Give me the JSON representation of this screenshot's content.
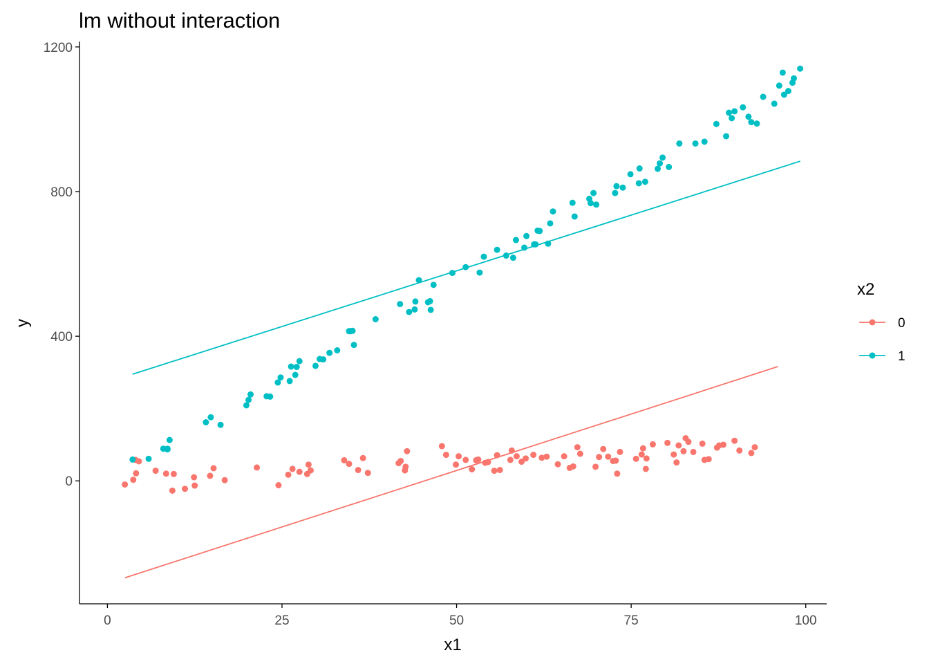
{
  "chart_data": {
    "type": "scatter",
    "title": "lm without interaction",
    "xlabel": "x1",
    "ylabel": "y",
    "xlim": [
      -4,
      103
    ],
    "ylim": [
      -340,
      1215
    ],
    "x_ticks": [
      0,
      25,
      50,
      75,
      100
    ],
    "x_tick_labels": [
      "0",
      "25",
      "50",
      "75",
      "100"
    ],
    "y_ticks": [
      0,
      400,
      800,
      1200
    ],
    "y_tick_labels": [
      "0",
      "400",
      "800",
      "1200"
    ],
    "grid": false,
    "legend": {
      "title": "x2",
      "position": "right",
      "entries": [
        "0",
        "1"
      ]
    },
    "colors": {
      "0": "#F8766D",
      "1": "#00BFC4",
      "axis": "#000000",
      "tick_text": "#4d4d4d"
    },
    "series": [
      {
        "name": "0",
        "color": "#F8766D",
        "points": [
          [
            2.5,
            -10
          ],
          [
            3.7,
            3
          ],
          [
            4.1,
            21
          ],
          [
            4.5,
            54
          ],
          [
            6.9,
            28
          ],
          [
            8.4,
            20
          ],
          [
            9.3,
            -27
          ],
          [
            9.5,
            19
          ],
          [
            11.1,
            -22
          ],
          [
            12.4,
            10
          ],
          [
            12.5,
            -13
          ],
          [
            14.7,
            14
          ],
          [
            15.2,
            35
          ],
          [
            16.8,
            2
          ],
          [
            21.4,
            37
          ],
          [
            24.5,
            -12
          ],
          [
            25.9,
            17
          ],
          [
            26.5,
            33
          ],
          [
            27.5,
            25
          ],
          [
            28.6,
            19
          ],
          [
            28.8,
            45
          ],
          [
            29.1,
            29
          ],
          [
            33.9,
            57
          ],
          [
            34.6,
            47
          ],
          [
            35.9,
            30
          ],
          [
            36.6,
            63
          ],
          [
            37.3,
            22
          ],
          [
            41.7,
            49
          ],
          [
            42.0,
            55
          ],
          [
            42.6,
            29
          ],
          [
            42.7,
            39
          ],
          [
            42.9,
            82
          ],
          [
            47.9,
            96
          ],
          [
            48.5,
            72
          ],
          [
            49.9,
            45
          ],
          [
            50.3,
            68
          ],
          [
            51.3,
            58
          ],
          [
            52.2,
            32
          ],
          [
            52.8,
            57
          ],
          [
            53.1,
            59
          ],
          [
            54.1,
            50
          ],
          [
            54.5,
            52
          ],
          [
            55.4,
            28
          ],
          [
            55.8,
            71
          ],
          [
            56.2,
            30
          ],
          [
            57.7,
            58
          ],
          [
            57.9,
            84
          ],
          [
            58.6,
            68
          ],
          [
            59.3,
            53
          ],
          [
            59.9,
            62
          ],
          [
            61.0,
            72
          ],
          [
            62.2,
            64
          ],
          [
            62.9,
            67
          ],
          [
            64.5,
            46
          ],
          [
            65.4,
            68
          ],
          [
            66.2,
            36
          ],
          [
            66.7,
            40
          ],
          [
            67.3,
            93
          ],
          [
            67.7,
            75
          ],
          [
            69.9,
            39
          ],
          [
            70.4,
            66
          ],
          [
            71.0,
            88
          ],
          [
            71.7,
            67
          ],
          [
            72.4,
            55
          ],
          [
            72.8,
            56
          ],
          [
            73.0,
            20
          ],
          [
            73.4,
            80
          ],
          [
            75.7,
            61
          ],
          [
            76.5,
            73
          ],
          [
            76.7,
            90
          ],
          [
            77.1,
            33
          ],
          [
            77.2,
            62
          ],
          [
            78.1,
            101
          ],
          [
            80.2,
            105
          ],
          [
            81.1,
            73
          ],
          [
            81.5,
            51
          ],
          [
            81.8,
            98
          ],
          [
            82.5,
            82
          ],
          [
            82.8,
            118
          ],
          [
            83.2,
            108
          ],
          [
            83.9,
            80
          ],
          [
            85.2,
            103
          ],
          [
            85.5,
            58
          ],
          [
            86.1,
            60
          ],
          [
            87.3,
            92
          ],
          [
            87.6,
            98
          ],
          [
            88.2,
            100
          ],
          [
            89.8,
            111
          ],
          [
            90.5,
            84
          ],
          [
            92.2,
            77
          ],
          [
            92.7,
            93
          ],
          [
            4.0,
            58
          ]
        ],
        "fit_line": {
          "x": [
            2.5,
            96.0
          ],
          "y": [
            -268,
            316
          ]
        }
      },
      {
        "name": "1",
        "color": "#00BFC4",
        "points": [
          [
            3.6,
            59
          ],
          [
            5.9,
            61
          ],
          [
            8.0,
            89
          ],
          [
            8.6,
            87
          ],
          [
            8.9,
            113
          ],
          [
            14.1,
            162
          ],
          [
            14.8,
            176
          ],
          [
            16.2,
            155
          ],
          [
            19.9,
            209
          ],
          [
            20.2,
            224
          ],
          [
            20.5,
            239
          ],
          [
            22.8,
            234
          ],
          [
            23.3,
            233
          ],
          [
            24.4,
            272
          ],
          [
            24.8,
            286
          ],
          [
            26.1,
            276
          ],
          [
            26.3,
            316
          ],
          [
            26.9,
            293
          ],
          [
            27.1,
            315
          ],
          [
            27.5,
            331
          ],
          [
            29.8,
            318
          ],
          [
            30.4,
            337
          ],
          [
            30.9,
            336
          ],
          [
            31.8,
            354
          ],
          [
            32.9,
            361
          ],
          [
            34.6,
            414
          ],
          [
            34.8,
            414
          ],
          [
            35.1,
            415
          ],
          [
            35.3,
            376
          ],
          [
            38.4,
            447
          ],
          [
            41.9,
            489
          ],
          [
            43.2,
            467
          ],
          [
            44.0,
            474
          ],
          [
            44.1,
            496
          ],
          [
            44.6,
            555
          ],
          [
            45.9,
            494
          ],
          [
            46.2,
            497
          ],
          [
            46.3,
            473
          ],
          [
            46.7,
            542
          ],
          [
            49.4,
            575
          ],
          [
            51.3,
            591
          ],
          [
            53.3,
            576
          ],
          [
            53.9,
            620
          ],
          [
            55.8,
            639
          ],
          [
            57.1,
            623
          ],
          [
            58.1,
            617
          ],
          [
            58.5,
            666
          ],
          [
            59.7,
            645
          ],
          [
            60.0,
            677
          ],
          [
            61.1,
            654
          ],
          [
            61.3,
            654
          ],
          [
            61.6,
            692
          ],
          [
            61.9,
            691
          ],
          [
            63.1,
            656
          ],
          [
            63.4,
            712
          ],
          [
            63.8,
            745
          ],
          [
            66.6,
            769
          ],
          [
            66.9,
            731
          ],
          [
            69.0,
            780
          ],
          [
            69.2,
            768
          ],
          [
            69.6,
            796
          ],
          [
            70.0,
            764
          ],
          [
            72.7,
            796
          ],
          [
            72.9,
            815
          ],
          [
            73.8,
            811
          ],
          [
            74.9,
            848
          ],
          [
            76.1,
            823
          ],
          [
            76.2,
            864
          ],
          [
            77.0,
            827
          ],
          [
            78.8,
            863
          ],
          [
            79.1,
            878
          ],
          [
            79.5,
            894
          ],
          [
            80.4,
            868
          ],
          [
            81.9,
            933
          ],
          [
            84.2,
            933
          ],
          [
            85.5,
            938
          ],
          [
            87.2,
            987
          ],
          [
            88.6,
            953
          ],
          [
            89.0,
            1018
          ],
          [
            89.4,
            1003
          ],
          [
            89.8,
            1022
          ],
          [
            91.0,
            1033
          ],
          [
            91.8,
            1007
          ],
          [
            92.2,
            992
          ],
          [
            93.0,
            988
          ],
          [
            93.9,
            1062
          ],
          [
            95.5,
            1043
          ],
          [
            96.2,
            1093
          ],
          [
            96.7,
            1129
          ],
          [
            96.9,
            1068
          ],
          [
            97.5,
            1078
          ],
          [
            98.1,
            1101
          ],
          [
            98.3,
            1113
          ],
          [
            99.2,
            1140
          ],
          [
            8.6,
            89
          ]
        ],
        "fit_line": {
          "x": [
            3.6,
            99.2
          ],
          "y": [
            295,
            884
          ]
        }
      }
    ]
  }
}
